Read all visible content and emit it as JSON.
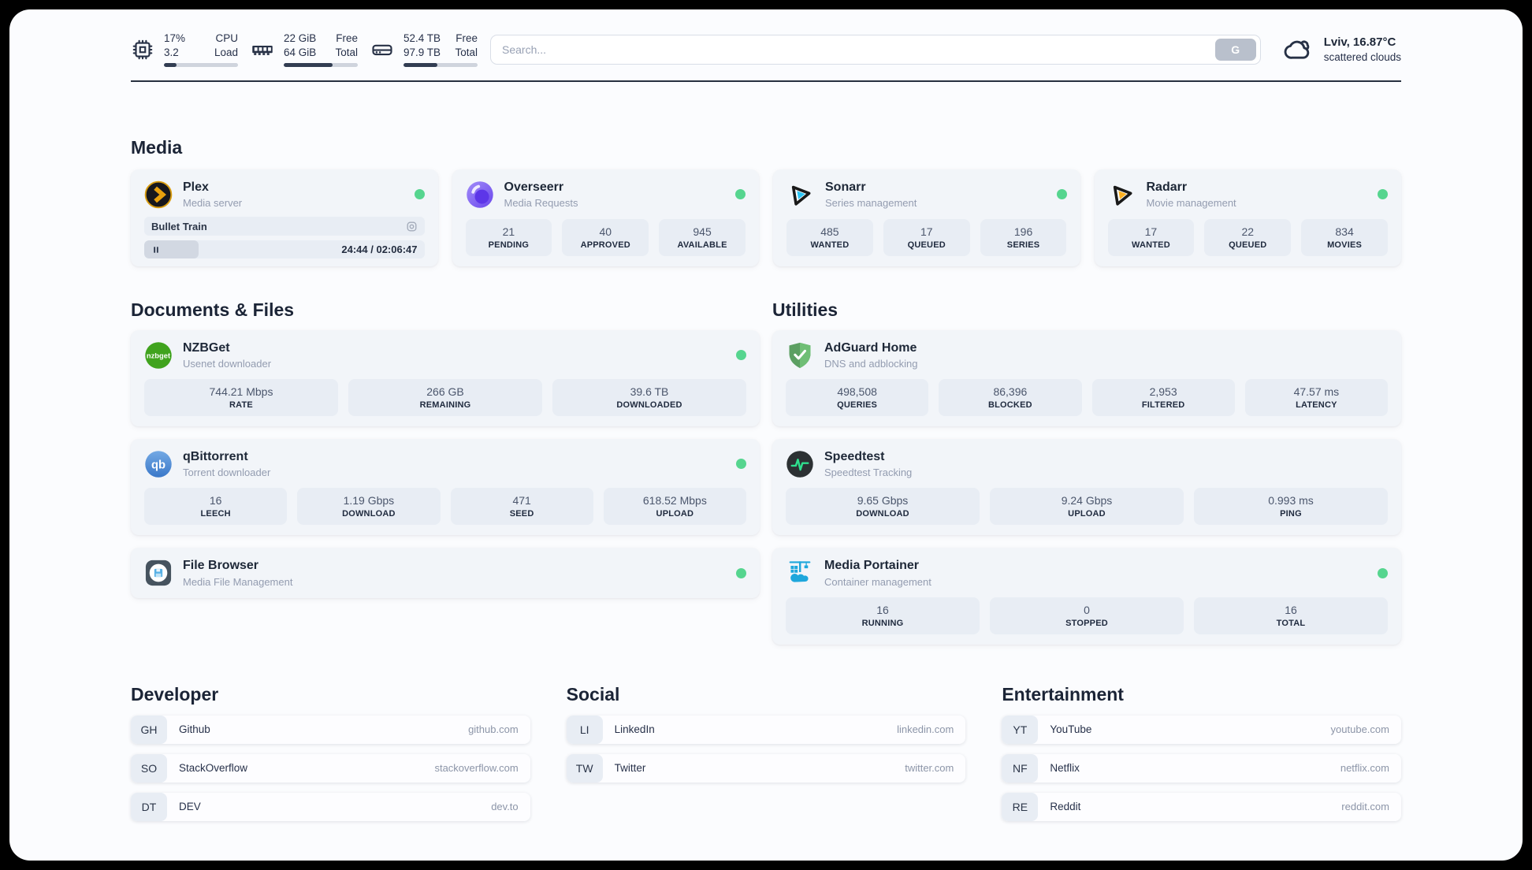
{
  "colors": {
    "status_online": "#56d58f",
    "progress_fill": "#323d52",
    "accent_green": "#2fe08e"
  },
  "header": {
    "system_stats": [
      {
        "icon": "cpu-icon",
        "value_top": "17%",
        "value_bottom": "3.2",
        "label_top": "CPU",
        "label_bottom": "Load",
        "progress_pct": 17
      },
      {
        "icon": "ram-icon",
        "value_top": "22 GiB",
        "value_bottom": "64 GiB",
        "label_top": "Free",
        "label_bottom": "Total",
        "progress_pct": 66
      },
      {
        "icon": "disk-icon",
        "value_top": "52.4 TB",
        "value_bottom": "97.9 TB",
        "label_top": "Free",
        "label_bottom": "Total",
        "progress_pct": 46
      }
    ],
    "search": {
      "placeholder": "Search...",
      "button_label": "G"
    },
    "weather": {
      "icon": "cloud-icon",
      "title": "Lviv, 16.87°C",
      "subtitle": "scattered clouds"
    }
  },
  "media": {
    "title": "Media",
    "plex": {
      "name": "Plex",
      "subtitle": "Media server",
      "now_playing": "Bullet Train",
      "time": "24:44 / 02:06:47",
      "progress_pct": 19.5
    },
    "overseerr": {
      "name": "Overseerr",
      "subtitle": "Media Requests",
      "stats": [
        {
          "value": "21",
          "label": "PENDING"
        },
        {
          "value": "40",
          "label": "APPROVED"
        },
        {
          "value": "945",
          "label": "AVAILABLE"
        }
      ]
    },
    "sonarr": {
      "name": "Sonarr",
      "subtitle": "Series management",
      "stats": [
        {
          "value": "485",
          "label": "WANTED"
        },
        {
          "value": "17",
          "label": "QUEUED"
        },
        {
          "value": "196",
          "label": "SERIES"
        }
      ]
    },
    "radarr": {
      "name": "Radarr",
      "subtitle": "Movie management",
      "stats": [
        {
          "value": "17",
          "label": "WANTED"
        },
        {
          "value": "22",
          "label": "QUEUED"
        },
        {
          "value": "834",
          "label": "MOVIES"
        }
      ]
    }
  },
  "documents": {
    "title": "Documents & Files",
    "nzbget": {
      "name": "NZBGet",
      "subtitle": "Usenet downloader",
      "stats": [
        {
          "value": "744.21 Mbps",
          "label": "RATE"
        },
        {
          "value": "266 GB",
          "label": "REMAINING"
        },
        {
          "value": "39.6 TB",
          "label": "DOWNLOADED"
        }
      ]
    },
    "qbittorrent": {
      "name": "qBittorrent",
      "subtitle": "Torrent downloader",
      "stats": [
        {
          "value": "16",
          "label": "LEECH"
        },
        {
          "value": "1.19 Gbps",
          "label": "DOWNLOAD"
        },
        {
          "value": "471",
          "label": "SEED"
        },
        {
          "value": "618.52 Mbps",
          "label": "UPLOAD"
        }
      ]
    },
    "filebrowser": {
      "name": "File Browser",
      "subtitle": "Media File Management"
    }
  },
  "utilities": {
    "title": "Utilities",
    "adguard": {
      "name": "AdGuard Home",
      "subtitle": "DNS and adblocking",
      "stats": [
        {
          "value": "498,508",
          "label": "QUERIES"
        },
        {
          "value": "86,396",
          "label": "BLOCKED"
        },
        {
          "value": "2,953",
          "label": "FILTERED"
        },
        {
          "value": "47.57 ms",
          "label": "LATENCY"
        }
      ]
    },
    "speedtest": {
      "name": "Speedtest",
      "subtitle": "Speedtest Tracking",
      "stats": [
        {
          "value": "9.65 Gbps",
          "label": "DOWNLOAD"
        },
        {
          "value": "9.24 Gbps",
          "label": "UPLOAD"
        },
        {
          "value": "0.993 ms",
          "label": "PING"
        }
      ]
    },
    "portainer": {
      "name": "Media Portainer",
      "subtitle": "Container management",
      "stats": [
        {
          "value": "16",
          "label": "RUNNING"
        },
        {
          "value": "0",
          "label": "STOPPED"
        },
        {
          "value": "16",
          "label": "TOTAL"
        }
      ]
    }
  },
  "bookmarks": [
    {
      "title": "Developer",
      "links": [
        {
          "abbr": "GH",
          "name": "Github",
          "url": "github.com"
        },
        {
          "abbr": "SO",
          "name": "StackOverflow",
          "url": "stackoverflow.com"
        },
        {
          "abbr": "DT",
          "name": "DEV",
          "url": "dev.to"
        }
      ]
    },
    {
      "title": "Social",
      "links": [
        {
          "abbr": "LI",
          "name": "LinkedIn",
          "url": "linkedin.com"
        },
        {
          "abbr": "TW",
          "name": "Twitter",
          "url": "twitter.com"
        }
      ]
    },
    {
      "title": "Entertainment",
      "links": [
        {
          "abbr": "YT",
          "name": "YouTube",
          "url": "youtube.com"
        },
        {
          "abbr": "NF",
          "name": "Netflix",
          "url": "netflix.com"
        },
        {
          "abbr": "RE",
          "name": "Reddit",
          "url": "reddit.com"
        }
      ]
    }
  ]
}
